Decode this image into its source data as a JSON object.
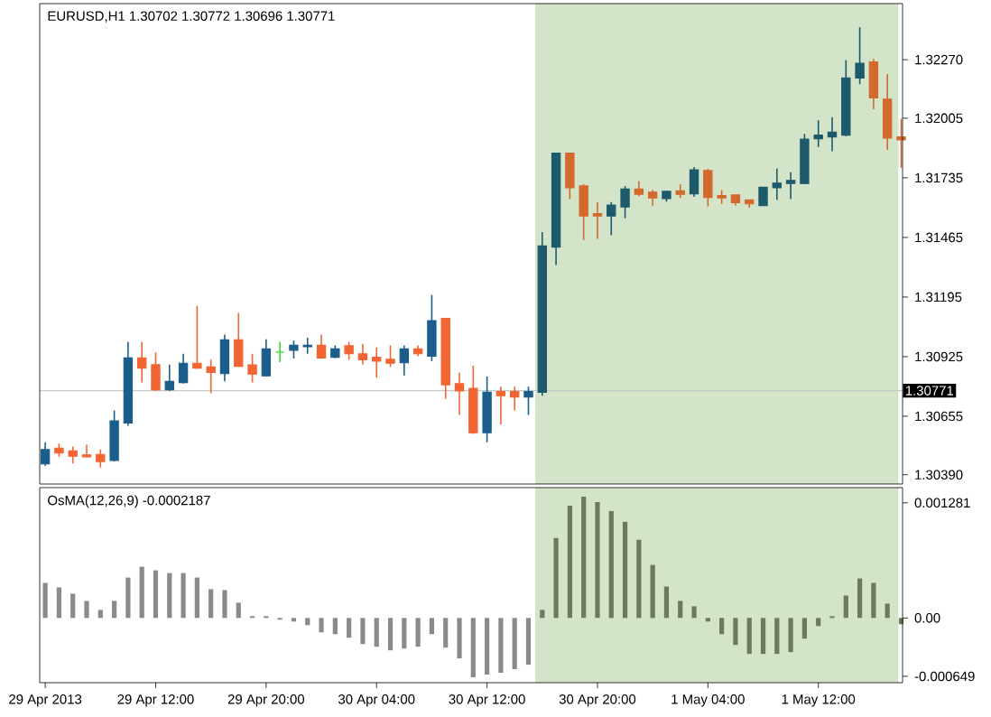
{
  "chart_data": [
    {
      "type": "candlestick",
      "title": "EURUSD,H1 1.30702 1.30772 1.30696 1.30771",
      "categories": [
        null,
        null,
        null,
        null,
        null,
        null,
        null,
        null,
        null,
        null,
        null,
        null,
        null,
        null,
        null,
        null,
        null,
        null,
        null,
        null,
        null,
        null,
        null,
        null,
        null,
        null,
        null,
        null,
        null,
        null,
        null,
        null,
        null,
        null,
        null,
        null,
        null,
        null,
        null,
        null,
        null,
        null,
        null,
        null,
        null,
        null,
        null,
        null,
        null,
        null,
        null,
        null,
        null,
        null,
        null,
        null,
        null,
        null,
        null,
        null,
        null,
        null,
        null
      ],
      "ohlc": [
        [
          1.30439,
          1.30537,
          1.30431,
          1.30504
        ],
        [
          1.3051,
          1.30531,
          1.30471,
          1.30488
        ],
        [
          1.30498,
          1.30518,
          1.30441,
          1.30474
        ],
        [
          1.3048,
          1.30526,
          1.30469,
          1.30471
        ],
        [
          1.30482,
          1.30504,
          1.30423,
          1.3045
        ],
        [
          1.30455,
          1.30681,
          1.3045,
          1.30634
        ],
        [
          1.30624,
          1.30992,
          1.30612,
          1.30919
        ],
        [
          1.30919,
          1.30992,
          1.30808,
          1.30873
        ],
        [
          1.30889,
          1.30944,
          1.3077,
          1.30775
        ],
        [
          1.30775,
          1.30889,
          1.3077,
          1.30813
        ],
        [
          1.30808,
          1.30938,
          1.30803,
          1.30895
        ],
        [
          1.30895,
          1.31155,
          1.3087,
          1.30873
        ],
        [
          1.30878,
          1.30911,
          1.30759,
          1.30854
        ],
        [
          1.30848,
          1.31025,
          1.30813,
          1.31001
        ],
        [
          1.31001,
          1.31123,
          1.30878,
          1.30881
        ],
        [
          1.30887,
          1.30938,
          1.30808,
          1.30846
        ],
        [
          1.30838,
          1.31003,
          1.30835,
          1.3096
        ],
        [
          1.30946,
          1.30992,
          1.309,
          1.30946
        ],
        [
          1.30954,
          1.30998,
          1.30917,
          1.30976
        ],
        [
          1.3097,
          1.31011,
          1.30938,
          1.30976
        ],
        [
          1.30976,
          1.31025,
          1.30915,
          1.30919
        ],
        [
          1.30922,
          1.30976,
          1.30918,
          1.3096
        ],
        [
          1.30974,
          1.30992,
          1.30911,
          1.30938
        ],
        [
          1.30938,
          1.30982,
          1.30889,
          1.30911
        ],
        [
          1.30922,
          1.30966,
          1.3083,
          1.30905
        ],
        [
          1.30913,
          1.30976,
          1.30878,
          1.30895
        ],
        [
          1.30897,
          1.30976,
          1.3084,
          1.3096
        ],
        [
          1.3096,
          1.30976,
          1.30927,
          1.30938
        ],
        [
          1.30927,
          1.31204,
          1.30905,
          1.31088
        ],
        [
          1.31098,
          1.31098,
          1.30734,
          1.30797
        ],
        [
          1.30803,
          1.30852,
          1.30661,
          1.3077
        ],
        [
          1.30781,
          1.30884,
          1.30575,
          1.3058
        ],
        [
          1.3058,
          1.30835,
          1.30537,
          1.30764
        ],
        [
          1.30767,
          1.30789,
          1.30618,
          1.30748
        ],
        [
          1.30767,
          1.30789,
          1.30681,
          1.30742
        ],
        [
          1.30742,
          1.30789,
          1.30661,
          1.30767
        ],
        [
          1.30764,
          1.31489,
          1.30748,
          1.31426
        ],
        [
          1.31421,
          1.31847,
          1.3134,
          1.31847
        ],
        [
          1.31847,
          1.31847,
          1.31638,
          1.3169
        ],
        [
          1.31698,
          1.31706,
          1.31454,
          1.31562
        ],
        [
          1.31573,
          1.31625,
          1.31459,
          1.31562
        ],
        [
          1.31562,
          1.31625,
          1.31475,
          1.31611
        ],
        [
          1.31603,
          1.31698,
          1.31552,
          1.31684
        ],
        [
          1.31684,
          1.31719,
          1.31652,
          1.3166
        ],
        [
          1.3167,
          1.31679,
          1.31609,
          1.31644
        ],
        [
          1.31641,
          1.31674,
          1.31627,
          1.31674
        ],
        [
          1.31676,
          1.31706,
          1.31644,
          1.3166
        ],
        [
          1.31662,
          1.31784,
          1.31649,
          1.31771
        ],
        [
          1.31768,
          1.31776,
          1.31605,
          1.31646
        ],
        [
          1.31654,
          1.31679,
          1.31617,
          1.31644
        ],
        [
          1.31657,
          1.31657,
          1.31609,
          1.31622
        ],
        [
          1.31635,
          1.31635,
          1.316,
          1.31617
        ],
        [
          1.31609,
          1.31692,
          1.31609,
          1.31692
        ],
        [
          1.3169,
          1.31776,
          1.31635,
          1.31711
        ],
        [
          1.31709,
          1.3176,
          1.31638,
          1.31723
        ],
        [
          1.31709,
          1.31934,
          1.31706,
          1.3191
        ],
        [
          1.31912,
          1.31996,
          1.31874,
          1.31928
        ],
        [
          1.3192,
          1.3201,
          1.31855,
          1.31942
        ],
        [
          1.31928,
          1.32268,
          1.31923,
          1.32187
        ],
        [
          1.32187,
          1.32417,
          1.32159,
          1.32254
        ],
        [
          1.3226,
          1.32273,
          1.32045,
          1.32097
        ],
        [
          1.32091,
          1.32205,
          1.31861,
          1.31915
        ],
        [
          1.3192,
          1.32002,
          1.3178,
          1.31907
        ]
      ],
      "colors": [
        "#1b5e8c",
        "#f26532",
        "#f26532",
        "#f26532",
        "#f26532",
        "#1b5e8c",
        "#1b5e8c",
        "#f26532",
        "#f26532",
        "#1b5e8c",
        "#1b5e8c",
        "#f26532",
        "#f26532",
        "#1b5e8c",
        "#f26532",
        "#f26532",
        "#1b5e8c",
        "#33dd33",
        "#1b5e8c",
        "#1b5e8c",
        "#f26532",
        "#1b5e8c",
        "#f26532",
        "#f26532",
        "#f26532",
        "#f26532",
        "#1b5e8c",
        "#f26532",
        "#1b5e8c",
        "#f26532",
        "#f26532",
        "#f26532",
        "#1b5e8c",
        "#f26532",
        "#f26532",
        "#1b5e8c",
        "#1d5a6c",
        "#1d5a6c",
        "#d4692e",
        "#d4692e",
        "#d4692e",
        "#1d5a6c",
        "#1d5a6c",
        "#d4692e",
        "#d4692e",
        "#1d5a6c",
        "#d4692e",
        "#1d5a6c",
        "#d4692e",
        "#d4692e",
        "#d4692e",
        "#d4692e",
        "#1d5a6c",
        "#1d5a6c",
        "#1d5a6c",
        "#1d5a6c",
        "#1d5a6c",
        "#1d5a6c",
        "#1d5a6c",
        "#1d5a6c",
        "#d4692e",
        "#d4692e",
        "#d4692e"
      ],
      "ylim": [
        1.30348,
        1.32524
      ],
      "yticks": [
        {
          "value": 1.3227,
          "label": "1.32270"
        },
        {
          "value": 1.32005,
          "label": "1.32005"
        },
        {
          "value": 1.31735,
          "label": "1.31735"
        },
        {
          "value": 1.31465,
          "label": "1.31465"
        },
        {
          "value": 1.31195,
          "label": "1.31195"
        },
        {
          "value": 1.30925,
          "label": "1.30925"
        },
        {
          "value": 1.30655,
          "label": "1.30655"
        },
        {
          "value": 1.3039,
          "label": "1.30390"
        }
      ],
      "tick_labels": "y",
      "ref_lines": [
        {
          "axis": "y",
          "value": 1.30771,
          "label": "1.30771",
          "color": "#c8c8c8"
        }
      ]
    },
    {
      "type": "bar",
      "title": "OsMA(12,26,9) -0.0002187",
      "categories": [
        "29 Apr 2013",
        null,
        null,
        null,
        null,
        null,
        null,
        null,
        "29 Apr 12:00",
        null,
        null,
        null,
        null,
        null,
        null,
        null,
        "29 Apr 20:00",
        null,
        null,
        null,
        null,
        null,
        null,
        null,
        "30 Apr 04:00",
        null,
        null,
        null,
        null,
        null,
        null,
        null,
        "30 Apr 12:00",
        null,
        null,
        null,
        null,
        null,
        null,
        null,
        "30 Apr 20:00",
        null,
        null,
        null,
        null,
        null,
        null,
        null,
        "1 May 04:00",
        null,
        null,
        null,
        null,
        null,
        null,
        null,
        "1 May 12:00",
        null,
        null,
        null,
        null,
        null,
        null
      ],
      "values": [
        0.00039,
        0.00034,
        0.00027,
        0.00019,
        9e-05,
        0.00019,
        0.00045,
        0.00057,
        0.00053,
        0.0005,
        0.0005,
        0.00045,
        0.00032,
        0.00031,
        0.00017,
        2e-05,
        2e-05,
        -2e-05,
        -4e-05,
        -8e-05,
        -0.00016,
        -0.00018,
        -0.00022,
        -0.00029,
        -0.00032,
        -0.00036,
        -0.00034,
        -0.00032,
        -0.00018,
        -0.00033,
        -0.00045,
        -0.00066,
        -0.00063,
        -0.00061,
        -0.00057,
        -0.00052,
        9e-05,
        0.00089,
        0.00125,
        0.00135,
        0.00129,
        0.00119,
        0.00107,
        0.00087,
        0.00059,
        0.00035,
        0.00019,
        0.00013,
        -4e-05,
        -0.00018,
        -0.0003,
        -0.0004,
        -0.0004,
        -0.0004,
        -0.00038,
        -0.00023,
        -9e-05,
        2e-05,
        0.00025,
        0.00044,
        0.00039,
        0.00016,
        -7e-05
      ],
      "colors": [
        "#8a8a8a",
        "#8a8a8a",
        "#8a8a8a",
        "#8a8a8a",
        "#8a8a8a",
        "#8a8a8a",
        "#8a8a8a",
        "#8a8a8a",
        "#8a8a8a",
        "#8a8a8a",
        "#8a8a8a",
        "#8a8a8a",
        "#8a8a8a",
        "#8a8a8a",
        "#8a8a8a",
        "#8a8a8a",
        "#8a8a8a",
        "#8a8a8a",
        "#8a8a8a",
        "#8a8a8a",
        "#8a8a8a",
        "#8a8a8a",
        "#8a8a8a",
        "#8a8a8a",
        "#8a8a8a",
        "#8a8a8a",
        "#8a8a8a",
        "#8a8a8a",
        "#8a8a8a",
        "#8a8a8a",
        "#8a8a8a",
        "#8a8a8a",
        "#8a8a8a",
        "#8a8a8a",
        "#8a8a8a",
        "#8a8a8a",
        "#6b7a5c",
        "#6b7a5c",
        "#6b7a5c",
        "#6b7a5c",
        "#6b7a5c",
        "#6b7a5c",
        "#6b7a5c",
        "#6b7a5c",
        "#6b7a5c",
        "#6b7a5c",
        "#6b7a5c",
        "#6b7a5c",
        "#6b7a5c",
        "#6b7a5c",
        "#6b7a5c",
        "#6b7a5c",
        "#6b7a5c",
        "#6b7a5c",
        "#6b7a5c",
        "#6b7a5c",
        "#6b7a5c",
        "#6b7a5c",
        "#6b7a5c",
        "#6b7a5c",
        "#6b7a5c",
        "#6b7a5c",
        "#6b7a5c"
      ],
      "ylim": [
        -0.00072,
        0.00145
      ],
      "yticks": [
        {
          "value": 0.001281,
          "label": "0.001281"
        },
        {
          "value": 0,
          "label": "0.00"
        },
        {
          "value": -0.000649,
          "label": "-0.000649"
        }
      ]
    }
  ]
}
